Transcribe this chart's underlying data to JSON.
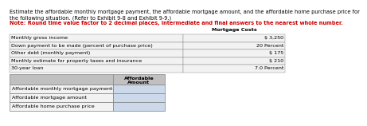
{
  "title_line1": "Estimate the affordable monthly mortgage payment, the affordable mortgage amount, and the affordable home purchase price for",
  "title_line2": "the following situation. (Refer to Exhibit 9-8 and Exhibit 9-9.)",
  "note": "Note: Round time value factor to 2 decimal places, intermediate and final answers to the nearest whole number.",
  "col_header": "Mortgage Costs",
  "info_rows": [
    {
      "label": "Monthly gross income",
      "value": "$ 3,250"
    },
    {
      "label": "Down payment to be made (percent of purchase price)",
      "value": "20 Percent"
    },
    {
      "label": "Other debt (monthly payment)",
      "value": "$ 175"
    },
    {
      "label": "Monthly estimate for property taxes and insurance",
      "value": "$ 210"
    },
    {
      "label": "30-year loan",
      "value": "7.0 Percent"
    }
  ],
  "table_col_header_line1": "Affordable",
  "table_col_header_line2": "Amount",
  "table_rows": [
    "Affordable monthly mortgage payment",
    "Affordable mortgage amount",
    "Affordable home purchase price"
  ],
  "bg_color": "#ffffff",
  "header_bg": "#c0c0c0",
  "cell_bg": "#ccd9ea",
  "info_row_bg": "#f2f2f2",
  "border_color": "#808080",
  "text_color": "#000000",
  "red_color": "#cc0000",
  "title_fontsize": 4.8,
  "note_fontsize": 4.8,
  "table_fontsize": 4.6
}
